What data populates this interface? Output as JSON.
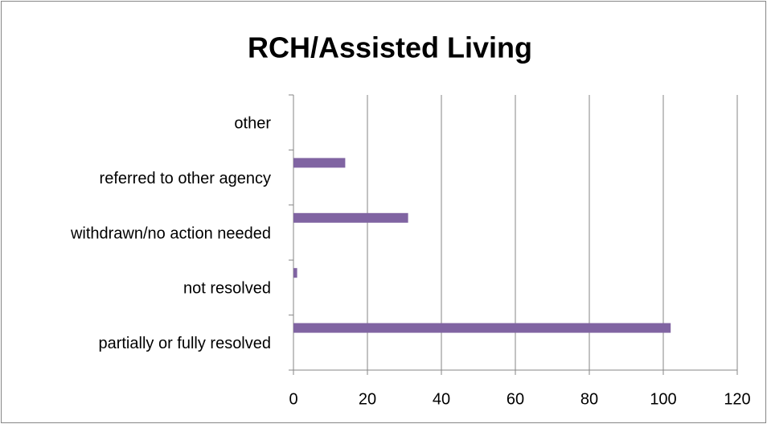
{
  "chart_data": {
    "type": "hbar",
    "title": "RCH/Assisted Living",
    "categories": [
      "other",
      "referred to other agency",
      "withdrawn/no action needed",
      "not resolved",
      "partially or fully resolved"
    ],
    "values": [
      0,
      14,
      31,
      1,
      102
    ],
    "color": "#8064a2",
    "xlim": [
      0,
      120
    ],
    "xticks": [
      0,
      20,
      40,
      60,
      80,
      100,
      120
    ],
    "grid": true
  }
}
